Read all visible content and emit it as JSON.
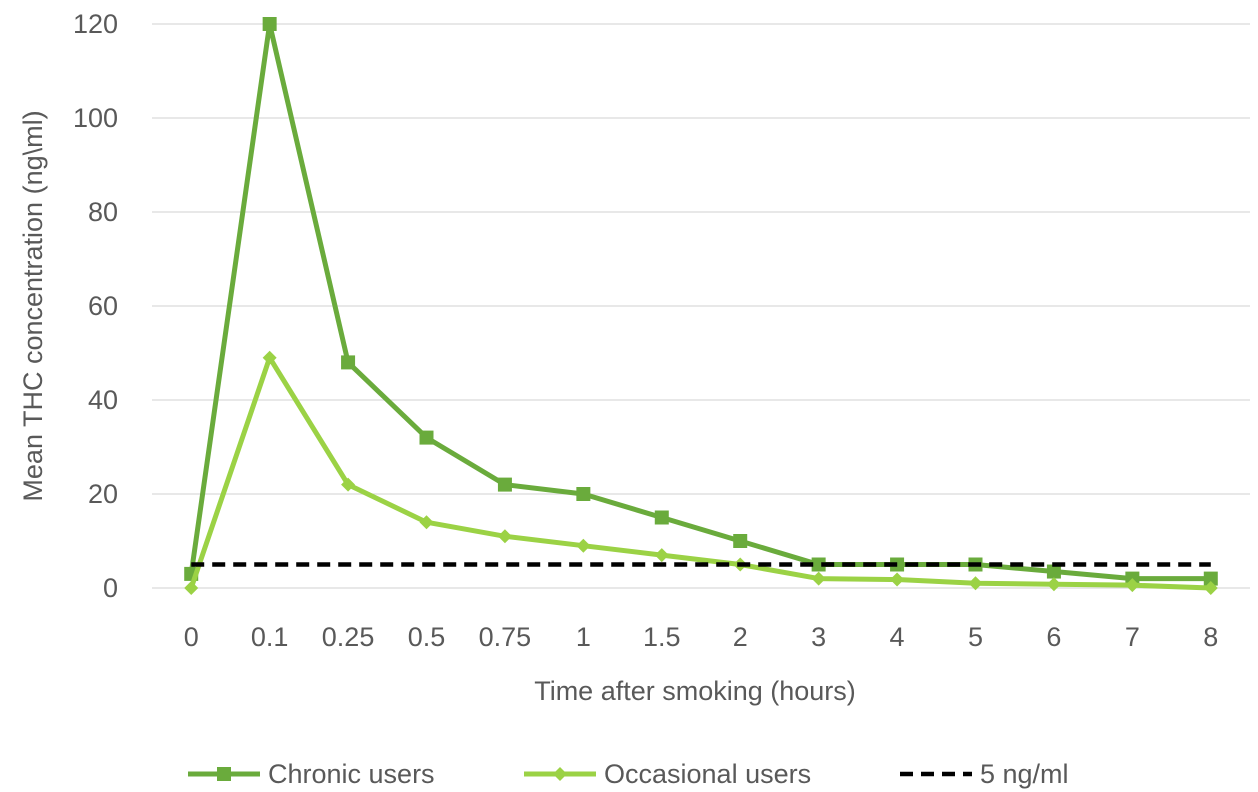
{
  "chart_data": {
    "type": "line",
    "categories": [
      "0",
      "0.1",
      "0.25",
      "0.5",
      "0.75",
      "1",
      "1.5",
      "2",
      "3",
      "4",
      "5",
      "6",
      "7",
      "8"
    ],
    "series": [
      {
        "name": "Chronic users",
        "color": "#6AAB3C",
        "marker": "square",
        "values": [
          3,
          120,
          48,
          32,
          22,
          20,
          15,
          10,
          5,
          5,
          5,
          3.5,
          2,
          2
        ]
      },
      {
        "name": "Occasional users",
        "color": "#9BD245",
        "marker": "diamond",
        "values": [
          0,
          49,
          22,
          14,
          11,
          9,
          7,
          5,
          2,
          1.8,
          1,
          0.8,
          0.6,
          0
        ]
      },
      {
        "name": "5 ng/ml",
        "color": "#000000",
        "marker": "none",
        "dashed": true,
        "values": [
          5,
          5,
          5,
          5,
          5,
          5,
          5,
          5,
          5,
          5,
          5,
          5,
          5,
          5
        ]
      }
    ],
    "xlabel": "Time after smoking (hours)",
    "ylabel": "Mean THC concentration (ng\\ml)",
    "ylim": [
      0,
      120
    ],
    "yticks": [
      "0",
      "20",
      "40",
      "60",
      "80",
      "100",
      "120"
    ],
    "grid": true,
    "legend_position": "bottom"
  }
}
